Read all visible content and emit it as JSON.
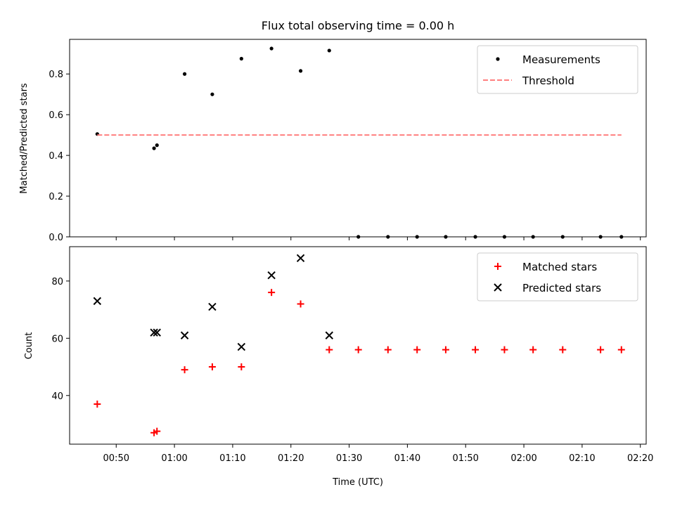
{
  "chart_data": [
    {
      "type": "scatter",
      "title": "Flux total observing time = 0.00 h",
      "xlabel": "",
      "ylabel": "Matched/Predicted stars",
      "ylim": [
        0,
        0.97
      ],
      "yticks": [
        "0.0",
        "0.2",
        "0.4",
        "0.6",
        "0.8"
      ],
      "ytick_values": [
        0,
        0.2,
        0.4,
        0.6,
        0.8
      ],
      "grid": false,
      "legend_position": "top-right",
      "series": [
        {
          "name": "Measurements",
          "kind": "point",
          "color": "#000000",
          "x": [
            "00:46:45",
            "00:56:30",
            "00:57:00",
            "01:01:45",
            "01:06:30",
            "01:11:30",
            "01:16:40",
            "01:21:40",
            "01:26:35",
            "01:31:35",
            "01:36:40",
            "01:41:40",
            "01:46:35",
            "01:51:40",
            "01:56:40",
            "02:01:35",
            "02:06:40",
            "02:13:10",
            "02:16:45"
          ],
          "y": [
            0.505,
            0.435,
            0.45,
            0.8,
            0.7,
            0.875,
            0.925,
            0.815,
            0.915,
            0.0,
            0.0,
            0.0,
            0.0,
            0.0,
            0.0,
            0.0,
            0.0,
            0.0,
            0.0
          ]
        },
        {
          "name": "Threshold",
          "kind": "dashed-line",
          "color": "#ff7f7f",
          "x": [
            "00:46:45",
            "02:16:45"
          ],
          "y": [
            0.5,
            0.5
          ]
        }
      ]
    },
    {
      "type": "scatter",
      "title": "",
      "xlabel": "Time (UTC)",
      "ylabel": "Count",
      "ylim": [
        23,
        92
      ],
      "yticks": [
        "40",
        "60",
        "80"
      ],
      "ytick_values": [
        40,
        60,
        80
      ],
      "xlim": [
        "00:42:00",
        "02:21:00"
      ],
      "xticks": [
        "00:50",
        "01:00",
        "01:10",
        "01:20",
        "01:30",
        "01:40",
        "01:50",
        "02:00",
        "02:10",
        "02:20"
      ],
      "grid": false,
      "legend_position": "top-right",
      "series": [
        {
          "name": "Matched stars",
          "marker": "plus",
          "color": "#ff0000",
          "x": [
            "00:46:45",
            "00:56:30",
            "00:57:00",
            "01:01:45",
            "01:06:30",
            "01:11:30",
            "01:16:40",
            "01:21:40",
            "01:26:35",
            "01:31:35",
            "01:36:40",
            "01:41:40",
            "01:46:35",
            "01:51:40",
            "01:56:40",
            "02:01:35",
            "02:06:40",
            "02:13:10",
            "02:16:45"
          ],
          "y": [
            37,
            27,
            27.5,
            49,
            50,
            50,
            76,
            72,
            56,
            56,
            56,
            56,
            56,
            56,
            56,
            56,
            56,
            56,
            56
          ]
        },
        {
          "name": "Predicted stars",
          "marker": "x",
          "color": "#000000",
          "x": [
            "00:46:45",
            "00:56:30",
            "00:57:00",
            "01:01:45",
            "01:06:30",
            "01:11:30",
            "01:16:40",
            "01:21:40",
            "01:26:35"
          ],
          "y": [
            73,
            62,
            62,
            61,
            71,
            57,
            82,
            88,
            61
          ]
        }
      ]
    }
  ]
}
